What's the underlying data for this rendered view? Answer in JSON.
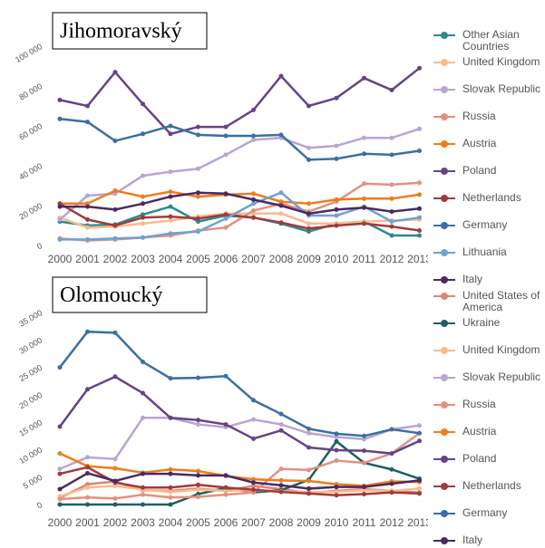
{
  "chart_data": [
    {
      "type": "line",
      "title": "Jihomoravský",
      "categories": [
        "2000",
        "2001",
        "2002",
        "2003",
        "2004",
        "2005",
        "2006",
        "2007",
        "2008",
        "2009",
        "2010",
        "2011",
        "2012",
        "2013"
      ],
      "ylim": [
        0,
        100000
      ],
      "yticks": [
        {
          "value": 0,
          "label": "0"
        },
        {
          "value": 20000,
          "label": "20 000"
        },
        {
          "value": 40000,
          "label": "40 000"
        },
        {
          "value": 60000,
          "label": "60 000"
        },
        {
          "value": 80000,
          "label": "80 000"
        },
        {
          "value": 100000,
          "label": "100 000"
        }
      ],
      "series": [
        {
          "name": "Other Asian Countries",
          "color": "#2a8a8f",
          "values": [
            12000,
            10000,
            10500,
            15500,
            19500,
            12000,
            15000,
            14000,
            11000,
            7000,
            11000,
            12000,
            5000,
            5000
          ]
        },
        {
          "name": "United Kingdom",
          "color": "#f7bc8c",
          "values": [
            14000,
            9000,
            9500,
            11000,
            12500,
            14500,
            16000,
            16000,
            16000,
            11000,
            11000,
            12000,
            12500,
            13000
          ]
        },
        {
          "name": "Slovak Republic",
          "color": "#b9a6d0",
          "values": [
            13000,
            25000,
            26000,
            35000,
            37000,
            38500,
            45500,
            53000,
            54000,
            49000,
            50000,
            54000,
            54000,
            58500
          ]
        },
        {
          "name": "Russia",
          "color": "#e3917f",
          "values": [
            3500,
            2500,
            3000,
            4000,
            5000,
            7500,
            9000,
            17500,
            21000,
            17000,
            22000,
            31000,
            30500,
            31500
          ]
        },
        {
          "name": "Austria",
          "color": "#f07c1a",
          "values": [
            21000,
            21000,
            27500,
            24500,
            27000,
            24500,
            25500,
            26000,
            22000,
            21000,
            23000,
            23500,
            23500,
            25500
          ]
        },
        {
          "name": "Poland",
          "color": "#654486",
          "values": [
            73000,
            70000,
            87000,
            71000,
            56000,
            59500,
            59500,
            68000,
            85000,
            70000,
            74000,
            84000,
            78000,
            89000
          ]
        },
        {
          "name": "Netherlands",
          "color": "#a13b3b",
          "values": [
            21000,
            13000,
            10000,
            14000,
            14500,
            13500,
            15500,
            14000,
            11500,
            8500,
            10000,
            11000,
            9500,
            7500
          ]
        },
        {
          "name": "Germany",
          "color": "#3b6fa3",
          "values": [
            63500,
            62000,
            52500,
            56000,
            60000,
            55500,
            55000,
            55000,
            55500,
            43000,
            43500,
            46000,
            45500,
            47500
          ]
        },
        {
          "name": "Lithuania",
          "color": "#6ea2d3",
          "values": [
            3000,
            3000,
            3500,
            4000,
            6000,
            7000,
            13500,
            21000,
            26500,
            15000,
            15000,
            19500,
            12000,
            14000
          ]
        },
        {
          "name": "Italy",
          "color": "#4a2a62",
          "values": [
            19500,
            19500,
            18000,
            21000,
            24500,
            26500,
            26000,
            23000,
            20000,
            16000,
            18000,
            19000,
            17000,
            18500
          ]
        }
      ]
    },
    {
      "type": "line",
      "title": "Olomoucký",
      "categories": [
        "2000",
        "2001",
        "2002",
        "2003",
        "2004",
        "2005",
        "2006",
        "2007",
        "2008",
        "2009",
        "2010",
        "2011",
        "2012",
        "2013"
      ],
      "ylim": [
        0,
        35000
      ],
      "yticks": [
        {
          "value": 0,
          "label": "0"
        },
        {
          "value": 5000,
          "label": "5 000"
        },
        {
          "value": 10000,
          "label": "10 000"
        },
        {
          "value": 15000,
          "label": "15 000"
        },
        {
          "value": 20000,
          "label": "20 000"
        },
        {
          "value": 25000,
          "label": "25 000"
        },
        {
          "value": 30000,
          "label": "30 000"
        },
        {
          "value": 35000,
          "label": "35 000"
        }
      ],
      "series": [
        {
          "name": "United States of America",
          "color": "#d98878",
          "values": [
            1200,
            3700,
            4200,
            2600,
            2500,
            2900,
            2500,
            3400,
            2800,
            2100,
            2500,
            2800,
            2500,
            2200
          ]
        },
        {
          "name": "Ukraine",
          "color": "#1e5f66",
          "values": [
            0,
            0,
            0,
            0,
            0,
            1900,
            3000,
            2200,
            2600,
            4500,
            11500,
            7600,
            6400,
            4700
          ]
        },
        {
          "name": "United Kingdom",
          "color": "#f7bc8c",
          "values": [
            1500,
            3100,
            3400,
            2700,
            2300,
            2700,
            2500,
            2600,
            2400,
            2300,
            2300,
            2600,
            2500,
            2900
          ]
        },
        {
          "name": "Slovak Republic",
          "color": "#b9a6d0",
          "values": [
            6500,
            8600,
            8300,
            15800,
            15800,
            14600,
            14100,
            15500,
            14600,
            13000,
            12300,
            11900,
            13700,
            14400
          ]
        },
        {
          "name": "Russia",
          "color": "#e3917f",
          "values": [
            1000,
            1300,
            1100,
            1800,
            1300,
            1400,
            1800,
            2200,
            6500,
            6300,
            8000,
            7600,
            9300,
            13000
          ]
        },
        {
          "name": "Austria",
          "color": "#f07c1a",
          "values": [
            9300,
            7000,
            6600,
            5800,
            6400,
            6100,
            5200,
            4600,
            4400,
            4300,
            3700,
            3400,
            4200,
            4100
          ]
        },
        {
          "name": "Poland",
          "color": "#654486",
          "values": [
            14200,
            21000,
            23300,
            20300,
            15800,
            15400,
            14600,
            12000,
            13500,
            10400,
            9900,
            9800,
            9300,
            11600
          ]
        },
        {
          "name": "Netherlands",
          "color": "#a13b3b",
          "values": [
            5600,
            6800,
            4000,
            3100,
            3100,
            3600,
            3100,
            2700,
            2300,
            2000,
            1700,
            1900,
            2200,
            2000
          ]
        },
        {
          "name": "Germany",
          "color": "#3b6fa3",
          "values": [
            25000,
            31500,
            31300,
            26000,
            23000,
            23100,
            23400,
            19000,
            16500,
            13800,
            12900,
            12500,
            13700,
            13000
          ]
        },
        {
          "name": "Italy",
          "color": "#4a2a62",
          "values": [
            2800,
            5700,
            4300,
            5600,
            5600,
            5300,
            5300,
            4000,
            3500,
            2900,
            3200,
            3200,
            3800,
            4400
          ]
        }
      ]
    }
  ]
}
